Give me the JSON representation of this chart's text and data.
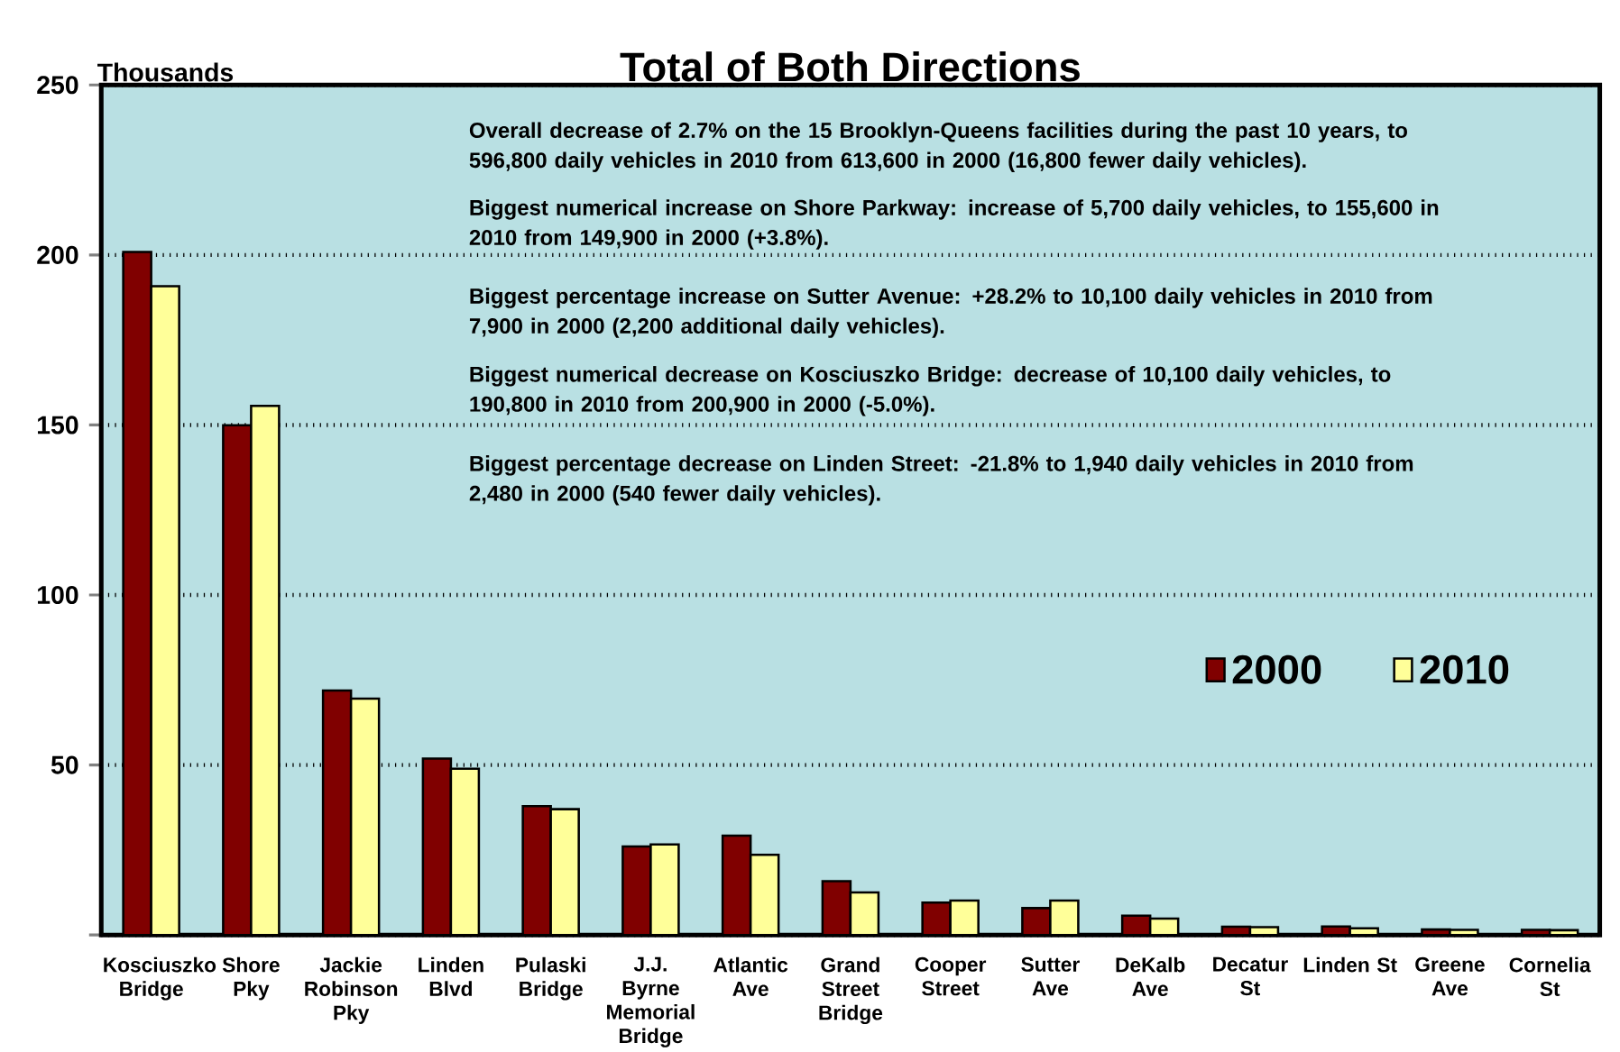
{
  "chart_data": {
    "type": "bar",
    "title": "Total of Both Directions",
    "ylabel": "Thousands",
    "categories": [
      "Kosciuszko Bridge",
      "Shore Pky",
      "Jackie Robinson Pky",
      "Linden Blvd",
      "Pulaski Bridge",
      "J.J. Byrne Memorial Bridge",
      "Atlantic Ave",
      "Grand Street Bridge",
      "Cooper Street",
      "Sutter Ave",
      "DeKalb Ave",
      "Decatur St",
      "Linden St",
      "Greene Ave",
      "Cornelia St"
    ],
    "series": [
      {
        "name": "2000",
        "color": "#800000",
        "values": [
          200.9,
          149.9,
          71.9,
          51.9,
          37.9,
          26.0,
          29.2,
          15.8,
          9.5,
          7.9,
          5.7,
          2.4,
          2.48,
          1.6,
          1.5
        ]
      },
      {
        "name": "2010",
        "color": "#ffff99",
        "values": [
          190.8,
          155.6,
          69.5,
          48.9,
          37.0,
          26.6,
          23.6,
          12.5,
          10.1,
          10.1,
          4.8,
          2.3,
          1.94,
          1.5,
          1.4
        ]
      }
    ],
    "ylim": [
      0,
      250
    ],
    "yticks": [
      {
        "value": 0,
        "label": null
      },
      50,
      100,
      150,
      200,
      250
    ],
    "grid": "y",
    "legend": "right",
    "annotations": [
      "Overall decrease of 2.7% on the 15 Brooklyn-Queens facilities during the past 10 years, to 596,800 daily vehicles in 2010 from 613,600 in 2000 (16,800 fewer daily vehicles).",
      "Biggest numerical increase on Shore Parkway:  increase of 5,700 daily vehicles, to 155,600 in 2010 from 149,900 in 2000 (+3.8%).",
      "Biggest percentage increase on Sutter Avenue:  +28.2% to 10,100 daily vehicles in 2010 from 7,900 in 2000 (2,200 additional daily vehicles).",
      "Biggest numerical decrease on Kosciuszko Bridge:  decrease of 10,100 daily vehicles, to 190,800 in 2010 from 200,900 in 2000 (-5.0%).",
      "Biggest percentage decrease on Linden Street:  -21.8% to 1,940 daily vehicles in 2010 from 2,480 in 2000 (540 fewer daily vehicles)."
    ]
  }
}
